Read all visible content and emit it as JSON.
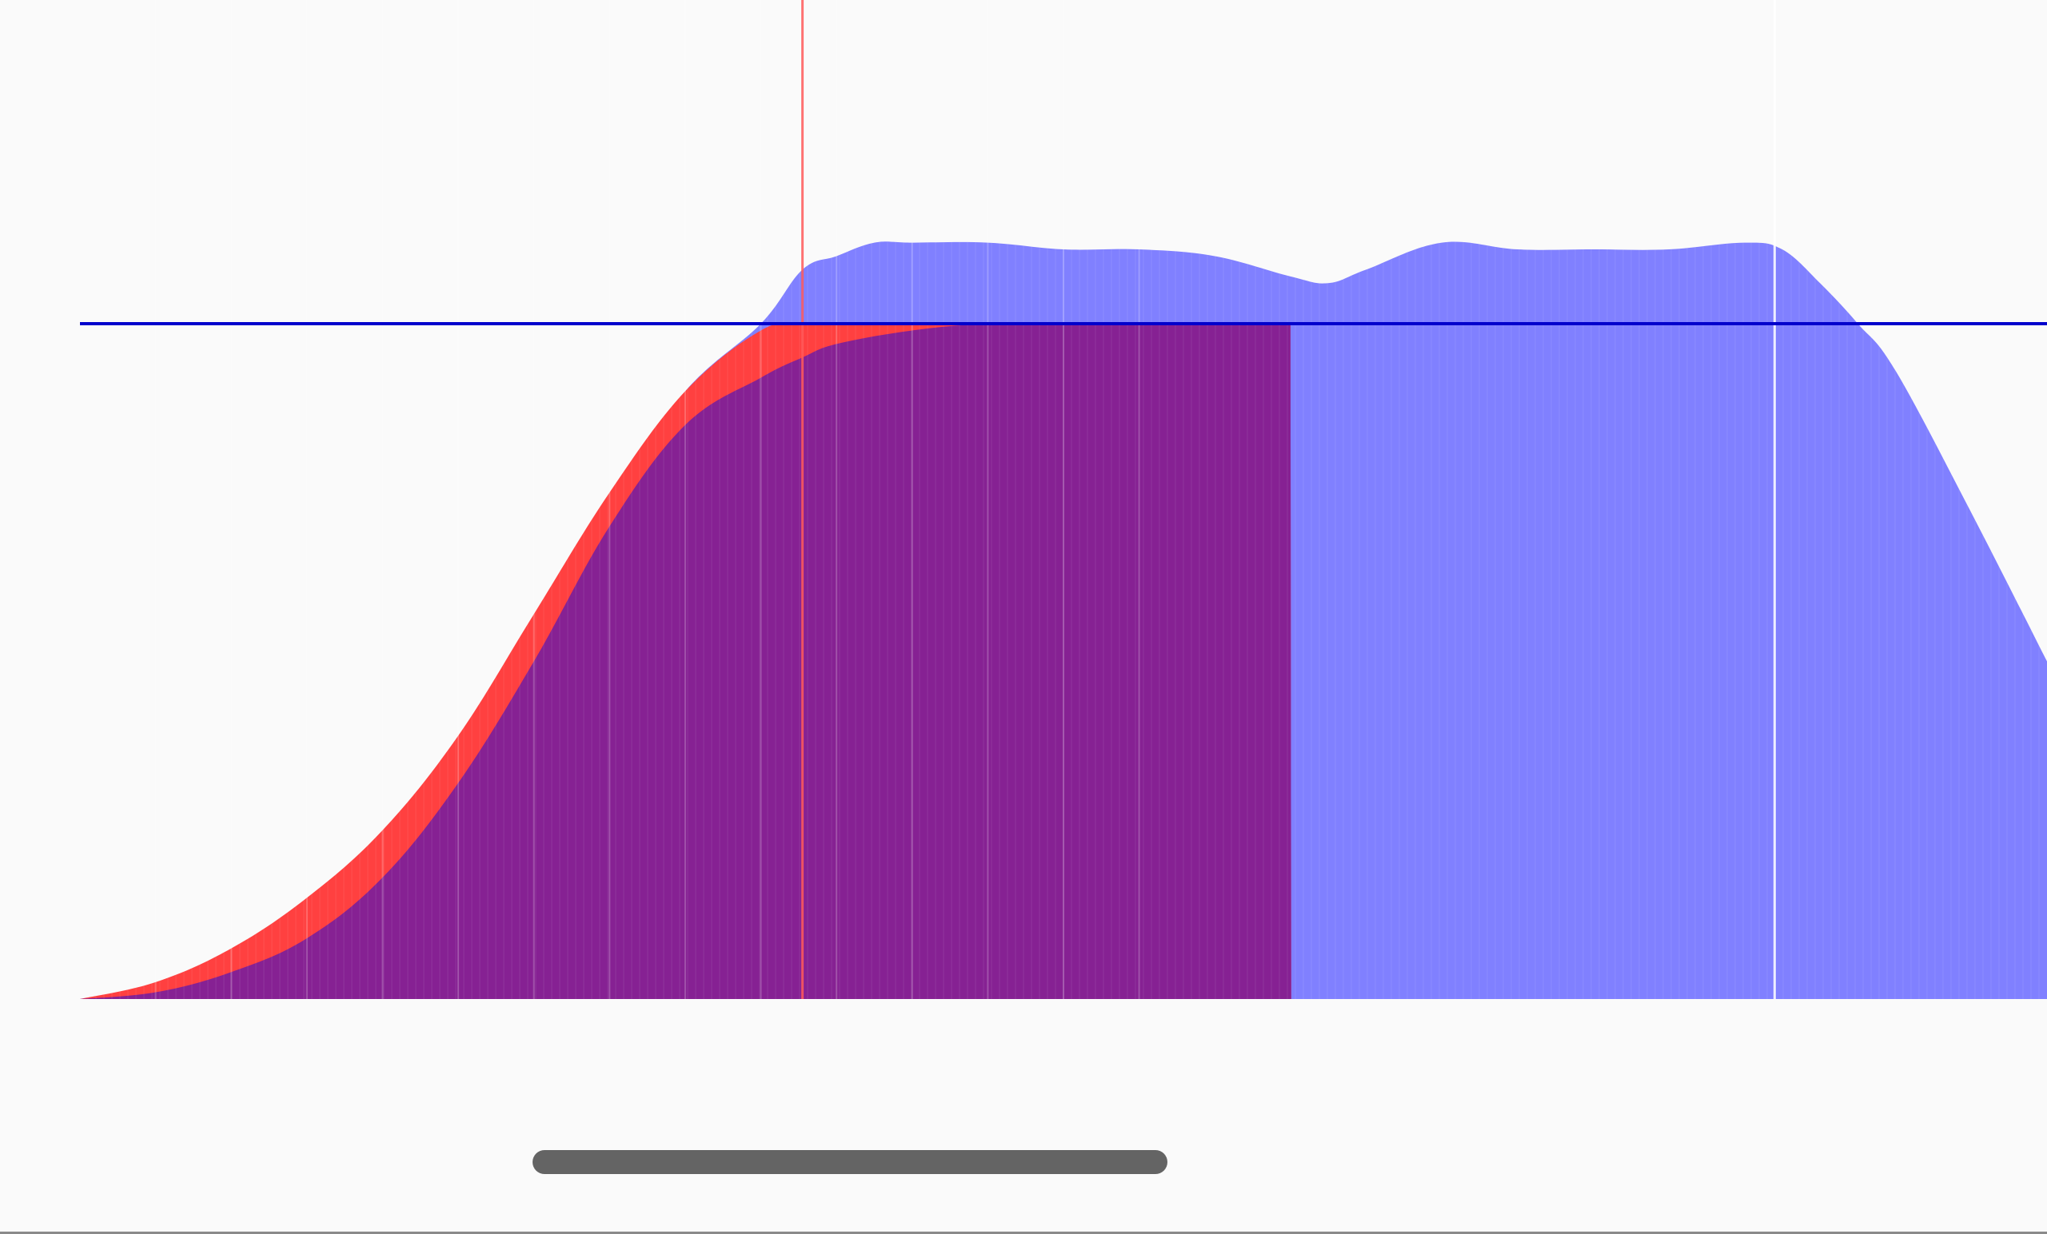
{
  "chart_data": {
    "type": "area",
    "title": "",
    "xlabel": "",
    "ylabel": "",
    "xlim": [
      0,
      26
    ],
    "ylim": [
      0,
      1.25
    ],
    "grid": false,
    "legend": "none",
    "reference_line": {
      "y": 1.0,
      "color": "#0000cc"
    },
    "series": [
      {
        "color": "#8080ff",
        "fill": "#8080ff",
        "x": [
          0,
          1,
          2,
          3,
          4,
          5,
          6,
          7,
          8,
          9,
          9.55,
          10,
          10.5,
          11,
          12,
          13,
          14,
          15,
          16,
          16.5,
          17,
          18,
          19,
          20,
          21,
          22,
          22.5,
          23,
          23.5,
          24,
          25,
          26
        ],
        "y": [
          0.0,
          0.02,
          0.06,
          0.13,
          0.23,
          0.38,
          0.56,
          0.74,
          0.9,
          1.0,
          1.08,
          1.1,
          1.12,
          1.12,
          1.12,
          1.11,
          1.11,
          1.1,
          1.07,
          1.06,
          1.08,
          1.12,
          1.11,
          1.11,
          1.11,
          1.12,
          1.11,
          1.06,
          1.0,
          0.93,
          0.72,
          0.5
        ]
      },
      {
        "color": "#ff4040",
        "fill": "#ff4040",
        "x": [
          0,
          1,
          2,
          3,
          4,
          5,
          6,
          7,
          8,
          9,
          9.55,
          10,
          11,
          12,
          13,
          14,
          15,
          16,
          16.01
        ],
        "y": [
          0.0,
          0.025,
          0.075,
          0.15,
          0.25,
          0.39,
          0.57,
          0.75,
          0.9,
          0.99,
          1.0,
          1.0,
          1.0,
          1.0,
          1.0,
          1.0,
          1.0,
          1.0,
          0.0
        ]
      },
      {
        "color": "#862193",
        "fill": "#862193",
        "x": [
          0,
          1,
          2,
          3,
          4,
          5,
          6,
          7,
          8,
          9,
          9.55,
          10,
          11,
          12,
          13,
          14,
          15,
          16,
          16.01
        ],
        "y": [
          0.0,
          0.01,
          0.04,
          0.09,
          0.18,
          0.32,
          0.5,
          0.7,
          0.85,
          0.92,
          0.95,
          0.97,
          0.99,
          1.0,
          1.0,
          1.0,
          1.0,
          1.0,
          0.0
        ]
      }
    ],
    "highlight_markers_x": [
      9.55,
      22.4
    ]
  },
  "scrollbar": {
    "position": 0.26,
    "extent": 0.31
  }
}
